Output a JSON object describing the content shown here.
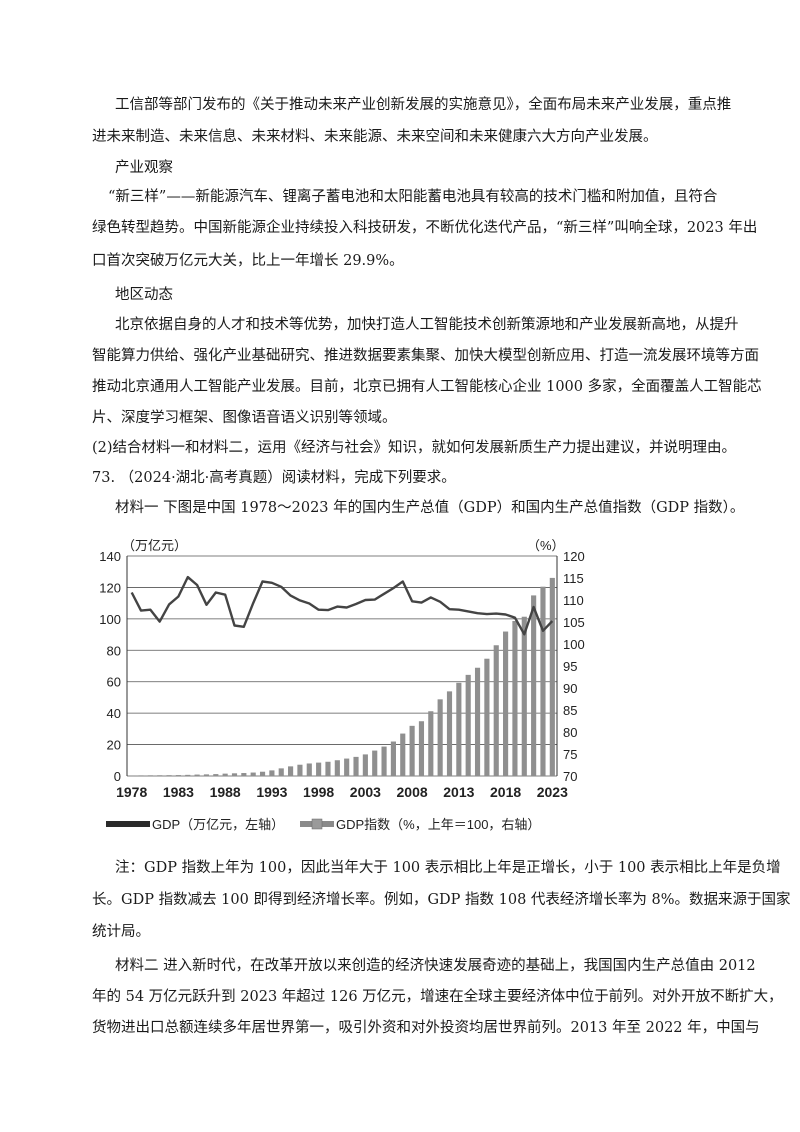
{
  "paragraphs": {
    "p1_l1": "工信部等部门发布的《关于推动未来产业创新发展的实施意见》，全面布局未来产业发展，重点推",
    "p1_l2": "进未来制造、未来信息、未来材料、未来能源、未来空间和未来健康六大方向产业发展。",
    "h_industry": "产业观察",
    "p2_l1": "“新三样”——新能源汽车、锂离子蓄电池和太阳能蓄电池具有较高的技术门槛和附加值，且符合",
    "p2_l2": "绿色转型趋势。中国新能源企业持续投入科技研发，不断优化迭代产品，“新三样”叫响全球，2023 年出",
    "p2_l3": "口首次突破万亿元大关，比上一年增长 29.9%。",
    "h_region": "地区动态",
    "p3_l1": "北京依据自身的人才和技术等优势，加快打造人工智能技术创新策源地和产业发展新高地，从提升",
    "p3_l2": "智能算力供给、强化产业基础研究、推进数据要素集聚、加快大模型创新应用、打造一流发展环境等方面",
    "p3_l3": "推动北京通用人工智能产业发展。目前，北京已拥有人工智能核心企业 1000 多家，全面覆盖人工智能芯",
    "p3_l4": "片、深度学习框架、图像语音语义识别等领域。",
    "q2": "(2)结合材料一和材料二，运用《经济与社会》知识，就如何发展新质生产力提出建议，并说明理由。",
    "q73": "73.  （2024·湖北·高考真题）阅读材料，完成下列要求。",
    "m1": "材料一  下图是中国 1978～2023 年的国内生产总值（GDP）和国内生产总值指数（GDP 指数）。",
    "note_l1": "注：GDP 指数上年为 100，因此当年大于 100 表示相比上年是正增长，小于 100 表示相比上年是负增",
    "note_l2": "长。GDP 指数减去 100 即得到经济增长率。例如，GDP 指数 108 代表经济增长率为 8%。数据来源于国家",
    "note_l3": "统计局。",
    "m2_l1": "材料二  进入新时代，在改革开放以来创造的经济快速发展奇迹的基础上，我国国内生产总值由 2012",
    "m2_l2": "年的 54 万亿元跃升到 2023 年超过 126 万亿元，增速在全球主要经济体中位于前列。对外开放不断扩大，",
    "m2_l3": "货物进出口总额连续多年居世界第一，吸引外资和对外投资均居世界前列。2013 年至 2022 年，中国与"
  },
  "chart_data": {
    "type": "bar",
    "left_unit": "（万亿元）",
    "right_unit": "（%）",
    "left_ticks": [
      "0",
      "20",
      "40",
      "60",
      "80",
      "100",
      "120",
      "140"
    ],
    "right_ticks": [
      "70",
      "75",
      "80",
      "85",
      "90",
      "95",
      "100",
      "105",
      "110",
      "115",
      "120"
    ],
    "x_ticks": [
      "1978",
      "1983",
      "1988",
      "1993",
      "1998",
      "2003",
      "2008",
      "2013",
      "2018",
      "2023"
    ],
    "ylim_left": [
      0,
      140
    ],
    "ylim_right": [
      70,
      120
    ],
    "legend_gdp": "GDP（万亿元，左轴）",
    "legend_index": "GDP指数（%，上年＝100，右轴）",
    "years": [
      1978,
      1979,
      1980,
      1981,
      1982,
      1983,
      1984,
      1985,
      1986,
      1987,
      1988,
      1989,
      1990,
      1991,
      1992,
      1993,
      1994,
      1995,
      1996,
      1997,
      1998,
      1999,
      2000,
      2001,
      2002,
      2003,
      2004,
      2005,
      2006,
      2007,
      2008,
      2009,
      2010,
      2011,
      2012,
      2013,
      2014,
      2015,
      2016,
      2017,
      2018,
      2019,
      2020,
      2021,
      2022,
      2023
    ],
    "gdp": [
      0.37,
      0.41,
      0.46,
      0.49,
      0.54,
      0.6,
      0.73,
      0.91,
      1.04,
      1.22,
      1.5,
      1.71,
      1.89,
      2.2,
      2.72,
      3.57,
      4.86,
      6.13,
      7.18,
      7.97,
      8.52,
      9.06,
      10.03,
      11.09,
      12.17,
      13.74,
      16.18,
      18.73,
      21.94,
      27.0,
      31.92,
      34.85,
      41.21,
      48.79,
      53.86,
      59.3,
      64.36,
      68.89,
      74.64,
      83.2,
      91.93,
      98.65,
      101.36,
      114.92,
      120.47,
      126.06
    ],
    "gdp_index": [
      111.7,
      107.6,
      107.8,
      105.1,
      109.0,
      110.8,
      115.2,
      113.4,
      108.9,
      111.7,
      111.2,
      104.2,
      103.9,
      109.3,
      114.2,
      113.9,
      113.0,
      111.0,
      109.9,
      109.2,
      107.8,
      107.7,
      108.5,
      108.3,
      109.1,
      110.0,
      110.1,
      111.4,
      112.7,
      114.2,
      109.7,
      109.4,
      110.6,
      109.6,
      107.9,
      107.8,
      107.4,
      107.0,
      106.8,
      106.9,
      106.7,
      106.0,
      102.2,
      108.4,
      103.0,
      105.2
    ]
  }
}
